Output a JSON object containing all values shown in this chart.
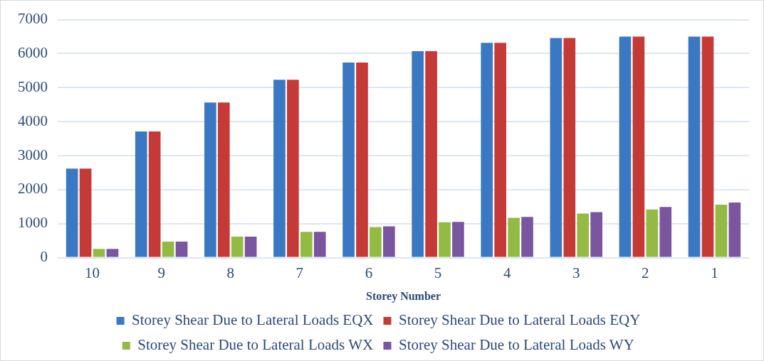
{
  "chart_data": {
    "type": "bar",
    "xlabel": "Storey Number",
    "categories": [
      "10",
      "9",
      "8",
      "7",
      "6",
      "5",
      "4",
      "3",
      "2",
      "1"
    ],
    "series": [
      {
        "name": "Storey Shear Due to Lateral Loads EQX",
        "color": "#3a78c4",
        "values": [
          2620,
          3710,
          4560,
          5230,
          5740,
          6070,
          6320,
          6460,
          6500,
          6500
        ]
      },
      {
        "name": "Storey Shear Due to Lateral Loads EQY",
        "color": "#c53a36",
        "values": [
          2620,
          3710,
          4560,
          5230,
          5740,
          6070,
          6320,
          6460,
          6500,
          6500
        ]
      },
      {
        "name": "Storey Shear Due to Lateral Loads WX",
        "color": "#93bb44",
        "values": [
          260,
          470,
          620,
          760,
          900,
          1040,
          1170,
          1300,
          1420,
          1560
        ]
      },
      {
        "name": "Storey Shear Due to Lateral Loads WY",
        "color": "#7a55a0",
        "values": [
          260,
          470,
          620,
          760,
          920,
          1050,
          1200,
          1340,
          1490,
          1620
        ]
      }
    ],
    "ylim": [
      0,
      7000
    ],
    "yticks": [
      0,
      1000,
      2000,
      3000,
      4000,
      5000,
      6000,
      7000
    ],
    "grid": "y",
    "legend": "bottom"
  }
}
